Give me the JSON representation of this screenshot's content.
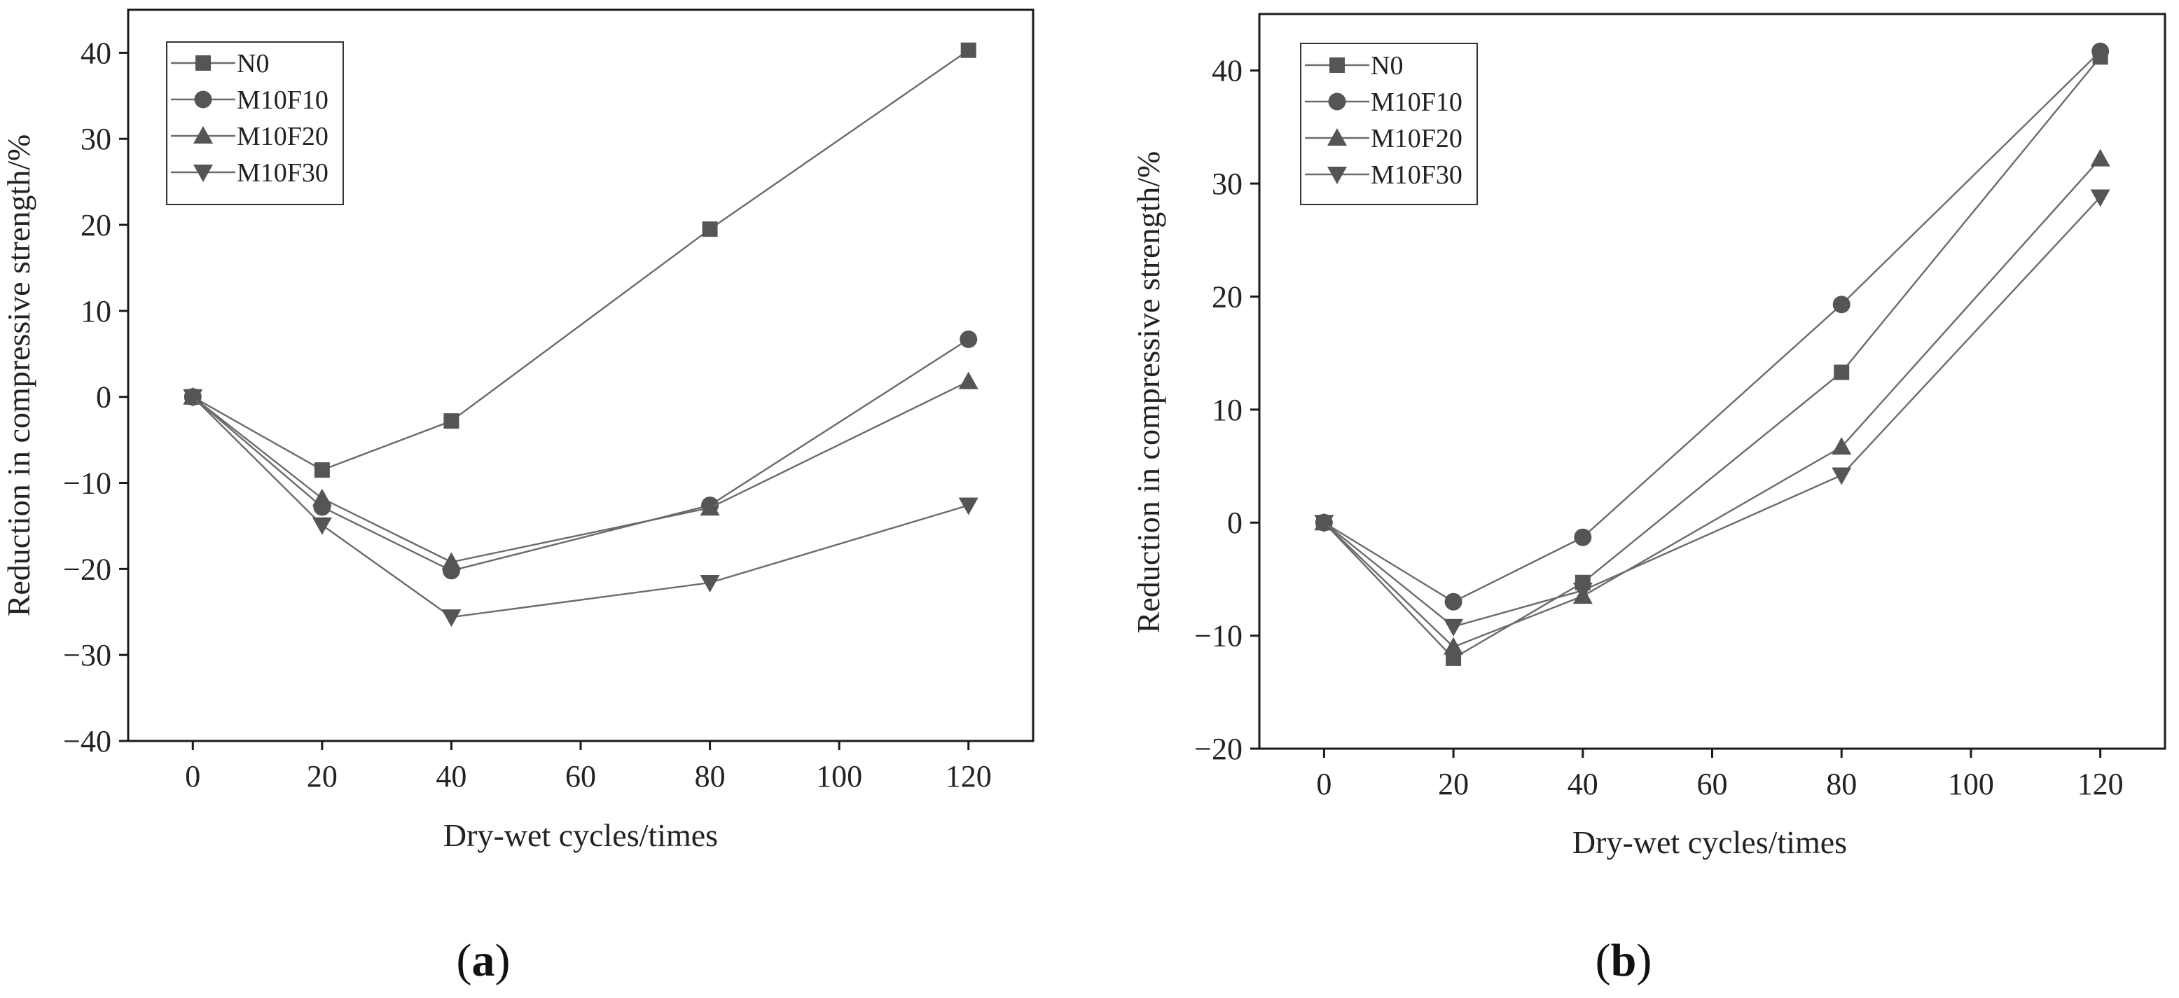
{
  "chart_data": [
    {
      "type": "line",
      "panel_label": "(a)",
      "panel_letter": "a",
      "xlabel": "Dry-wet cycles/times",
      "ylabel": "Reduction in compressive strength/%",
      "xlim": [
        -10,
        130
      ],
      "ylim": [
        -40,
        45
      ],
      "xticks": [
        0,
        20,
        40,
        60,
        80,
        100,
        120
      ],
      "yticks": [
        -40,
        -30,
        -20,
        -10,
        0,
        10,
        20,
        30,
        40
      ],
      "legend_position": "top-left",
      "x": [
        0,
        20,
        40,
        80,
        120
      ],
      "series": [
        {
          "name": "N0",
          "marker": "square",
          "values": [
            0,
            -8.5,
            -2.8,
            19.5,
            40.3
          ]
        },
        {
          "name": "M10F10",
          "marker": "circle",
          "values": [
            0,
            -12.8,
            -20.2,
            -12.6,
            6.7
          ]
        },
        {
          "name": "M10F20",
          "marker": "triangle-up",
          "values": [
            0,
            -11.8,
            -19.2,
            -12.9,
            1.8
          ]
        },
        {
          "name": "M10F30",
          "marker": "triangle-down",
          "values": [
            0,
            -14.9,
            -25.6,
            -21.6,
            -12.6
          ]
        }
      ]
    },
    {
      "type": "line",
      "panel_label": "(b)",
      "panel_letter": "b",
      "xlabel": "Dry-wet cycles/times",
      "ylabel": "Reduction in compressive strength/%",
      "xlim": [
        -10,
        130
      ],
      "ylim": [
        -20,
        45
      ],
      "xticks": [
        0,
        20,
        40,
        60,
        80,
        100,
        120
      ],
      "yticks": [
        -20,
        -10,
        0,
        10,
        20,
        30,
        40
      ],
      "legend_position": "top-left",
      "x": [
        0,
        20,
        40,
        80,
        120
      ],
      "series": [
        {
          "name": "N0",
          "marker": "square",
          "values": [
            0,
            -12.0,
            -5.3,
            13.3,
            41.2
          ]
        },
        {
          "name": "M10F10",
          "marker": "circle",
          "values": [
            0,
            -7.0,
            -1.3,
            19.3,
            41.7
          ]
        },
        {
          "name": "M10F20",
          "marker": "triangle-up",
          "values": [
            0,
            -11.0,
            -6.5,
            6.7,
            32.2
          ]
        },
        {
          "name": "M10F30",
          "marker": "triangle-down",
          "values": [
            0,
            -9.2,
            -6.0,
            4.2,
            28.8
          ]
        }
      ]
    }
  ]
}
